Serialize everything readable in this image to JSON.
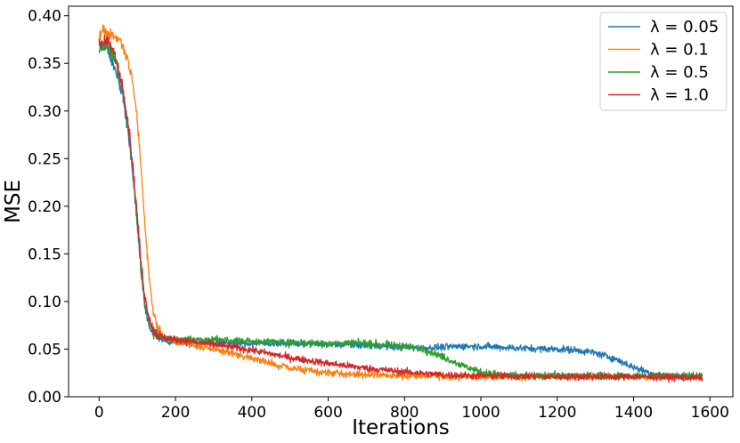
{
  "chart_data": {
    "type": "line",
    "title": "",
    "xlabel": "Iterations",
    "ylabel": "MSE",
    "xlim": [
      -80,
      1660
    ],
    "ylim": [
      0.0,
      0.41
    ],
    "xticks": [
      0,
      200,
      400,
      600,
      800,
      1000,
      1200,
      1400,
      1600
    ],
    "yticks": [
      0.0,
      0.05,
      0.1,
      0.15,
      0.2,
      0.25,
      0.3,
      0.35,
      0.4
    ],
    "grid": false,
    "legend_position": "top-right",
    "series": [
      {
        "name": "λ = 0.05",
        "color": "#1f77b4",
        "noise": 0.0035,
        "x": [
          0,
          20,
          40,
          60,
          70,
          80,
          90,
          100,
          110,
          120,
          130,
          140,
          150,
          170,
          200,
          250,
          300,
          400,
          500,
          600,
          700,
          800,
          850,
          900,
          950,
          1000,
          1100,
          1200,
          1250,
          1300,
          1350,
          1400,
          1450,
          1500,
          1580
        ],
        "y": [
          0.37,
          0.368,
          0.345,
          0.32,
          0.295,
          0.265,
          0.225,
          0.18,
          0.13,
          0.095,
          0.075,
          0.067,
          0.063,
          0.059,
          0.057,
          0.057,
          0.057,
          0.056,
          0.056,
          0.055,
          0.054,
          0.052,
          0.051,
          0.052,
          0.053,
          0.053,
          0.051,
          0.05,
          0.049,
          0.046,
          0.04,
          0.031,
          0.024,
          0.022,
          0.021
        ]
      },
      {
        "name": "λ = 0.1",
        "color": "#ff7f0e",
        "noise": 0.0035,
        "x": [
          0,
          10,
          20,
          30,
          40,
          50,
          60,
          70,
          80,
          90,
          100,
          110,
          120,
          130,
          140,
          150,
          170,
          200,
          300,
          400,
          450,
          500,
          550,
          600,
          700,
          800,
          1000,
          1200,
          1400,
          1580
        ],
        "y": [
          0.378,
          0.385,
          0.382,
          0.38,
          0.378,
          0.376,
          0.37,
          0.36,
          0.345,
          0.325,
          0.29,
          0.24,
          0.18,
          0.13,
          0.095,
          0.075,
          0.062,
          0.058,
          0.05,
          0.041,
          0.035,
          0.03,
          0.027,
          0.025,
          0.023,
          0.022,
          0.021,
          0.021,
          0.021,
          0.021
        ]
      },
      {
        "name": "λ = 0.5",
        "color": "#2ca02c",
        "noise": 0.0035,
        "x": [
          0,
          20,
          40,
          60,
          70,
          80,
          90,
          100,
          110,
          120,
          130,
          140,
          150,
          170,
          200,
          250,
          300,
          400,
          500,
          600,
          700,
          800,
          850,
          900,
          950,
          1000,
          1050,
          1100,
          1200,
          1400,
          1580
        ],
        "y": [
          0.365,
          0.37,
          0.355,
          0.325,
          0.3,
          0.27,
          0.23,
          0.185,
          0.135,
          0.1,
          0.08,
          0.07,
          0.065,
          0.061,
          0.06,
          0.06,
          0.06,
          0.058,
          0.057,
          0.056,
          0.056,
          0.053,
          0.05,
          0.042,
          0.033,
          0.026,
          0.023,
          0.022,
          0.022,
          0.022,
          0.022
        ]
      },
      {
        "name": "λ = 1.0",
        "color": "#d62728",
        "noise": 0.0035,
        "x": [
          0,
          20,
          40,
          60,
          70,
          80,
          90,
          100,
          110,
          120,
          130,
          140,
          150,
          170,
          200,
          300,
          400,
          500,
          600,
          700,
          800,
          900,
          1000,
          1200,
          1400,
          1580
        ],
        "y": [
          0.37,
          0.375,
          0.36,
          0.33,
          0.305,
          0.275,
          0.235,
          0.19,
          0.14,
          0.105,
          0.085,
          0.072,
          0.066,
          0.062,
          0.06,
          0.055,
          0.049,
          0.041,
          0.035,
          0.03,
          0.026,
          0.023,
          0.022,
          0.021,
          0.021,
          0.02
        ]
      }
    ]
  }
}
